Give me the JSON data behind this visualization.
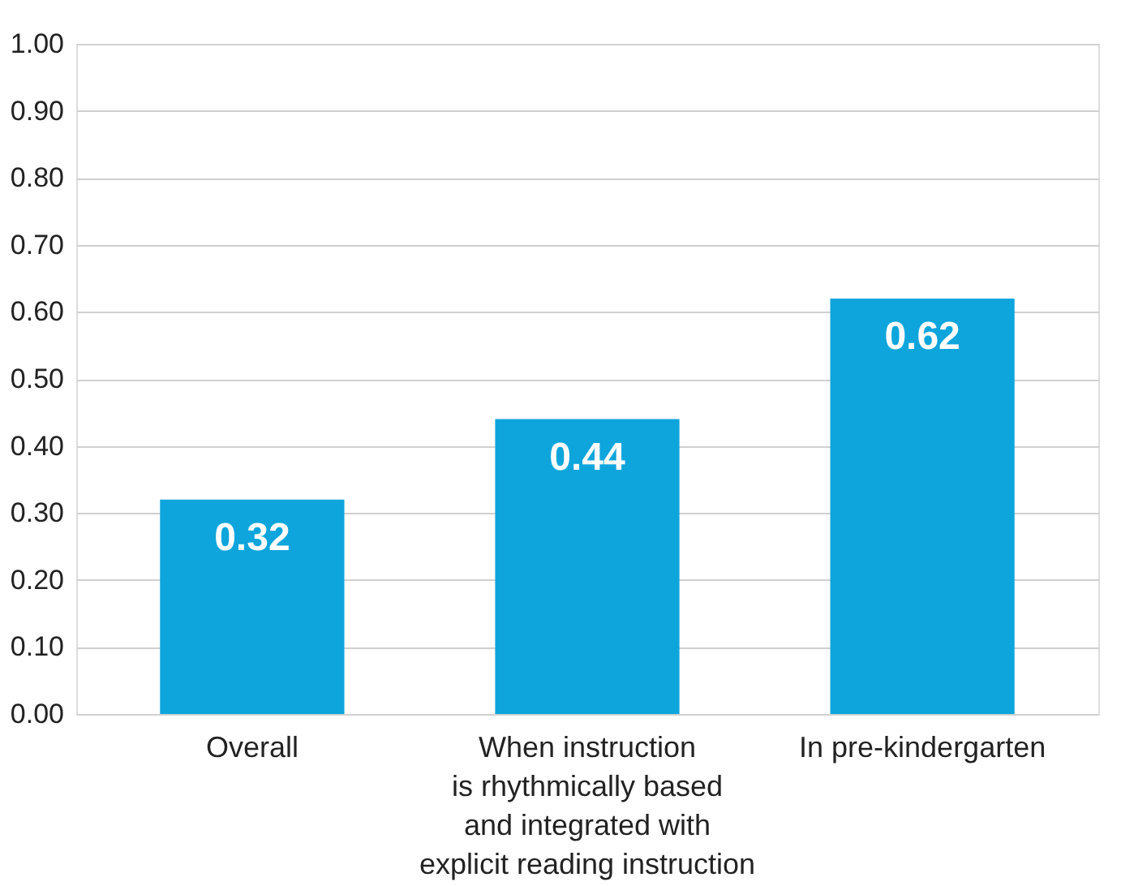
{
  "chart_data": {
    "type": "bar",
    "categories": [
      "Overall",
      "When instruction\nis rhythmically based\nand integrated with\nexplicit reading instruction",
      "In pre-kindergarten"
    ],
    "values": [
      0.32,
      0.44,
      0.62
    ],
    "color": "#0ea5dc",
    "data_labels": true,
    "ylim": [
      0,
      1
    ],
    "yticks": [
      {
        "value": 0,
        "label": "0.00"
      },
      {
        "value": 0.1,
        "label": "0.10"
      },
      {
        "value": 0.2,
        "label": "0.20"
      },
      {
        "value": 0.3,
        "label": "0.30"
      },
      {
        "value": 0.4,
        "label": "0.40"
      },
      {
        "value": 0.5,
        "label": "0.50"
      },
      {
        "value": 0.6,
        "label": "0.60"
      },
      {
        "value": 0.7,
        "label": "0.70"
      },
      {
        "value": 0.8,
        "label": "0.80"
      },
      {
        "value": 0.9,
        "label": "0.90"
      },
      {
        "value": 1,
        "label": "1.00"
      }
    ],
    "grid": "y"
  }
}
